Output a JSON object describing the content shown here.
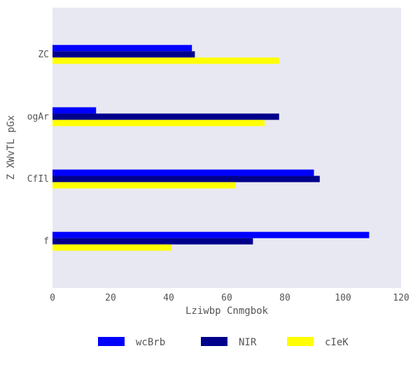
{
  "chart_data": {
    "type": "bar",
    "orientation": "horizontal",
    "categories": [
      "ZC",
      "ogAr",
      "CfIl",
      "f"
    ],
    "series": [
      {
        "name": "wcBrb",
        "color": "#0000ff",
        "values": [
          48,
          15,
          90,
          109
        ]
      },
      {
        "name": "NIR",
        "color": "#00008b",
        "values": [
          49,
          78,
          92,
          69
        ]
      },
      {
        "name": "cIeK",
        "color": "#ffff00",
        "values": [
          78,
          73,
          63,
          41
        ]
      }
    ],
    "xlabel": "Lziwbp Cnmgbok",
    "ylabel": "Z XWvTL  pGx",
    "xlim": [
      0,
      120
    ],
    "xticks": [
      0,
      20,
      40,
      60,
      80,
      100,
      120
    ],
    "grid": false,
    "background": "#e8e8f2",
    "legend_position": "bottom-center"
  }
}
